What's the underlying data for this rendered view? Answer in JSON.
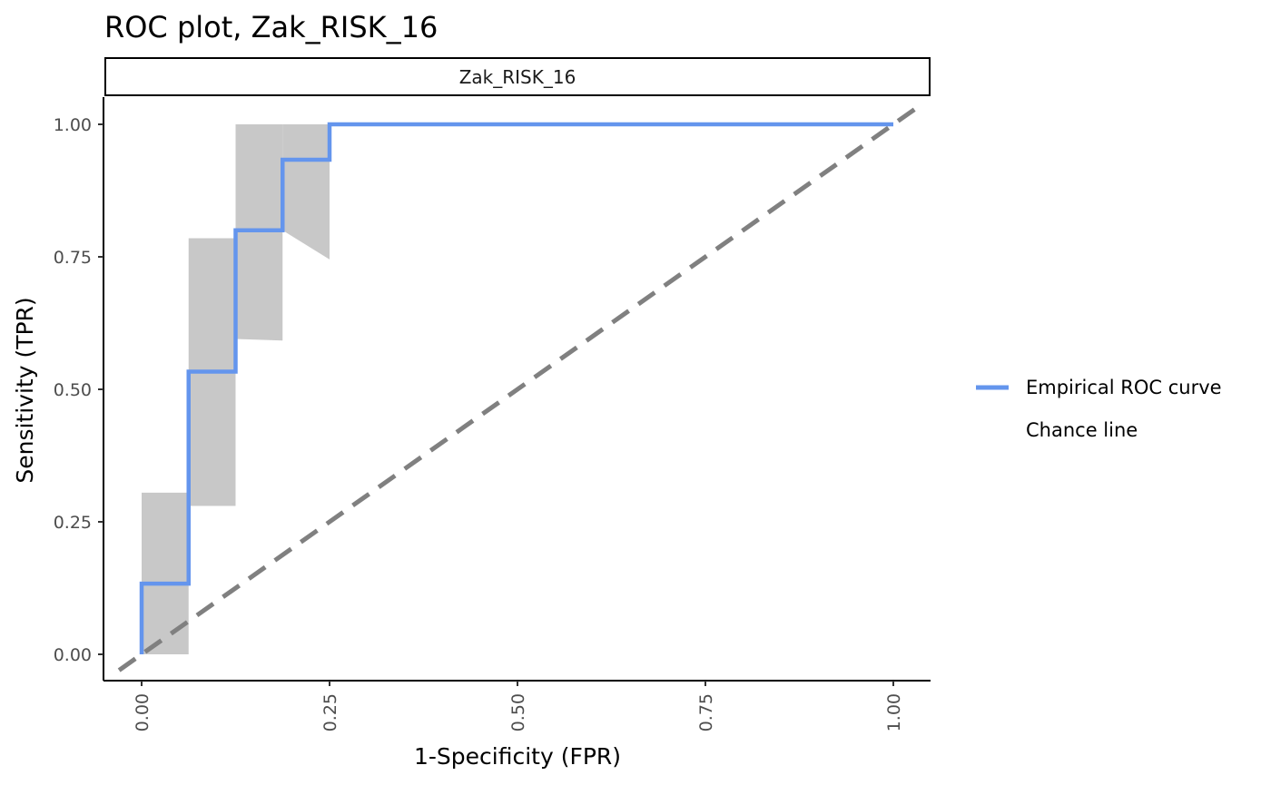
{
  "chart_data": {
    "type": "line",
    "title": "ROC plot, Zak_RISK_16",
    "facet_label": "Zak_RISK_16",
    "xlabel": "1-Specificity (FPR)",
    "ylabel": "Sensitivity (TPR)",
    "xlim": [
      0,
      1
    ],
    "ylim": [
      0,
      1
    ],
    "x_ticks": [
      "0.00",
      "0.25",
      "0.50",
      "0.75",
      "1.00"
    ],
    "y_ticks": [
      "0.00",
      "0.25",
      "0.50",
      "0.75",
      "1.00"
    ],
    "grid": false,
    "legend_position": "right",
    "series": [
      {
        "name": "Empirical ROC curve",
        "color": "#6495ED",
        "style": "step",
        "x": [
          0,
          0,
          0.0625,
          0.0625,
          0.125,
          0.125,
          0.1875,
          0.1875,
          0.25,
          0.25,
          1.0
        ],
        "y": [
          0,
          0.1333,
          0.1333,
          0.5333,
          0.5333,
          0.8,
          0.8,
          0.9333,
          0.9333,
          1.0,
          1.0
        ]
      },
      {
        "name": "Chance line",
        "color": "#808080",
        "style": "dashed",
        "x": [
          -0.03,
          1.04
        ],
        "y": [
          -0.03,
          1.04
        ]
      }
    ],
    "confidence_band": {
      "color": "#C8C8C8",
      "segments": [
        {
          "x0": 0,
          "x1": 0.0625,
          "lower": [
            0,
            0
          ],
          "upper": [
            0.305,
            0.305
          ]
        },
        {
          "x0": 0.0625,
          "x1": 0.125,
          "lower": [
            0.28,
            0.28
          ],
          "upper": [
            0.785,
            0.785
          ]
        },
        {
          "x0": 0.125,
          "x1": 0.1875,
          "lower": [
            0.595,
            0.592
          ],
          "upper": [
            1.0,
            1.0
          ]
        },
        {
          "x0": 0.1875,
          "x1": 0.25,
          "lower": [
            0.8,
            0.745
          ],
          "upper": [
            1.0,
            1.0
          ]
        }
      ]
    }
  }
}
